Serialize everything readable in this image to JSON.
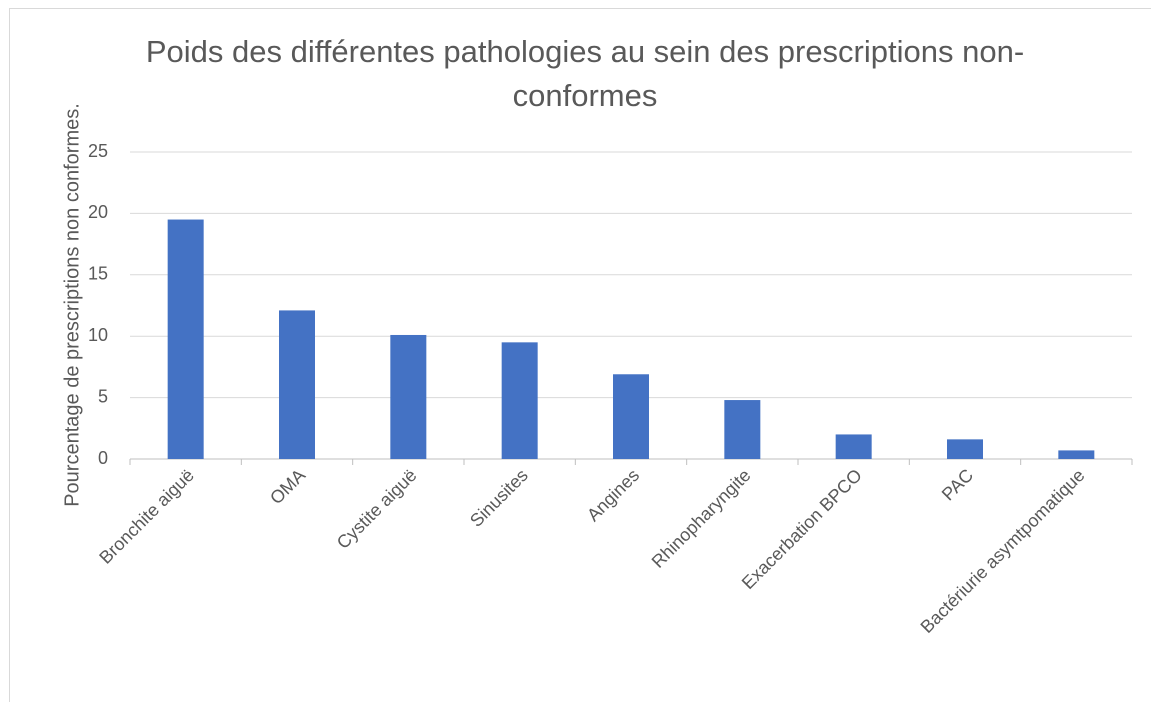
{
  "chart_data": {
    "type": "bar",
    "title": "Poids des différentes pathologies au sein des prescriptions non-conformes",
    "y_label": "Pourcentage de prescriptions non conformes.",
    "categories": [
      "Bronchite aiguë",
      "OMA",
      "Cystite aiguë",
      "Sinusites",
      "Angines",
      "Rhinopharyngite",
      "Exacerbation BPCO",
      "PAC",
      "Bactériurie asymtpomatique"
    ],
    "values": [
      19.5,
      12.1,
      10.1,
      9.5,
      6.9,
      4.8,
      2.0,
      1.6,
      0.7
    ],
    "color": "#4472c4",
    "ylim": [
      0,
      25
    ],
    "yticks": [
      0,
      5,
      10,
      15,
      20,
      25
    ],
    "grid": true
  }
}
